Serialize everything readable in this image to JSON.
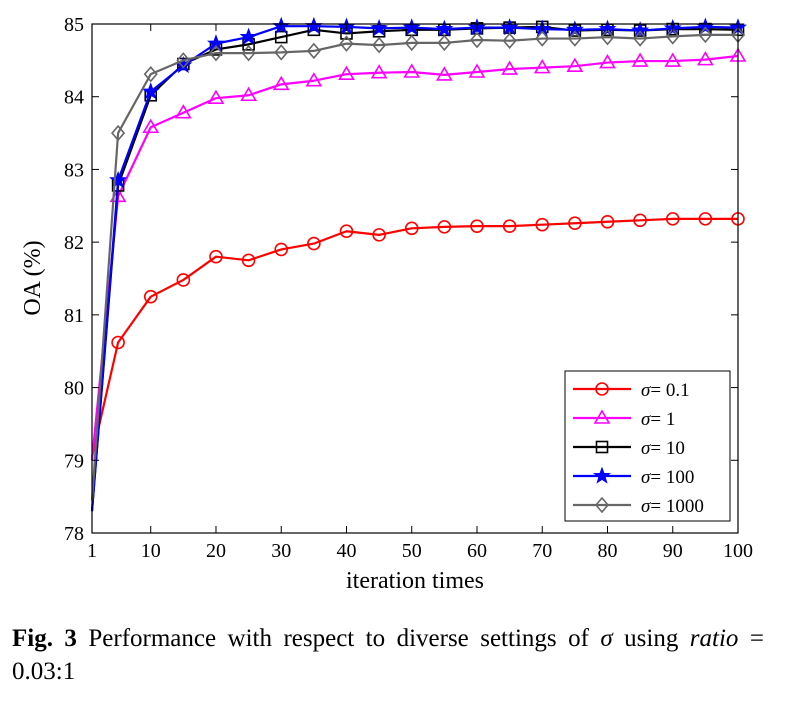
{
  "chart_data": {
    "type": "line",
    "xlabel": "iteration times",
    "ylabel": "OA (%)",
    "xlim": [
      1,
      100
    ],
    "ylim": [
      78,
      85
    ],
    "x_ticks": [
      1,
      10,
      20,
      30,
      40,
      50,
      60,
      70,
      80,
      90,
      100
    ],
    "y_ticks": [
      78,
      79,
      80,
      81,
      82,
      83,
      84,
      85
    ],
    "grid": false,
    "legend_position": "bottom-right",
    "x": [
      1,
      5,
      10,
      15,
      20,
      25,
      30,
      35,
      40,
      45,
      50,
      55,
      60,
      65,
      70,
      75,
      80,
      85,
      90,
      95,
      100
    ],
    "series": [
      {
        "name": "σ= 0.1",
        "sigma_label": "σ",
        "value_label": "= 0.1",
        "color": "#ff0000",
        "marker": "circle",
        "values": [
          79.05,
          80.62,
          81.25,
          81.48,
          81.8,
          81.75,
          81.9,
          81.98,
          82.15,
          82.1,
          82.19,
          82.21,
          82.22,
          82.22,
          82.24,
          82.26,
          82.28,
          82.3,
          82.32,
          82.32,
          82.32
        ]
      },
      {
        "name": "σ= 1",
        "sigma_label": "σ",
        "value_label": "= 1",
        "color": "#ff00ff",
        "marker": "triangle",
        "values": [
          79.0,
          82.63,
          83.58,
          83.78,
          83.98,
          84.02,
          84.17,
          84.22,
          84.31,
          84.33,
          84.34,
          84.3,
          84.34,
          84.38,
          84.4,
          84.42,
          84.47,
          84.49,
          84.49,
          84.51,
          84.56
        ]
      },
      {
        "name": "σ= 10",
        "sigma_label": "σ",
        "value_label": "= 10",
        "color": "#000000",
        "marker": "square",
        "values": [
          78.3,
          82.78,
          84.02,
          84.45,
          84.65,
          84.72,
          84.82,
          84.92,
          84.87,
          84.9,
          84.92,
          84.92,
          84.94,
          84.95,
          84.96,
          84.91,
          84.92,
          84.91,
          84.93,
          84.93,
          84.92
        ]
      },
      {
        "name": "σ= 100",
        "sigma_label": "σ",
        "value_label": "= 100",
        "color": "#0000ff",
        "marker": "star",
        "values": [
          78.3,
          82.85,
          84.07,
          84.43,
          84.73,
          84.82,
          84.97,
          84.97,
          84.96,
          84.94,
          84.95,
          84.93,
          84.95,
          84.95,
          84.93,
          84.92,
          84.93,
          84.91,
          84.94,
          84.96,
          84.95
        ]
      },
      {
        "name": "σ= 1000",
        "sigma_label": "σ",
        "value_label": "= 1000",
        "color": "#666666",
        "marker": "diamond",
        "values": [
          78.45,
          83.5,
          84.31,
          84.5,
          84.6,
          84.6,
          84.61,
          84.63,
          84.73,
          84.71,
          84.74,
          84.74,
          84.78,
          84.77,
          84.8,
          84.8,
          84.82,
          84.8,
          84.83,
          84.85,
          84.85
        ]
      }
    ]
  },
  "caption": {
    "label": "Fig. 3",
    "text_before": " Performance with respect to diverse settings of ",
    "sigma": "σ",
    "text_middle": " using ",
    "ratio_word": "ratio",
    "ratio_value": " = 0.03:1"
  }
}
